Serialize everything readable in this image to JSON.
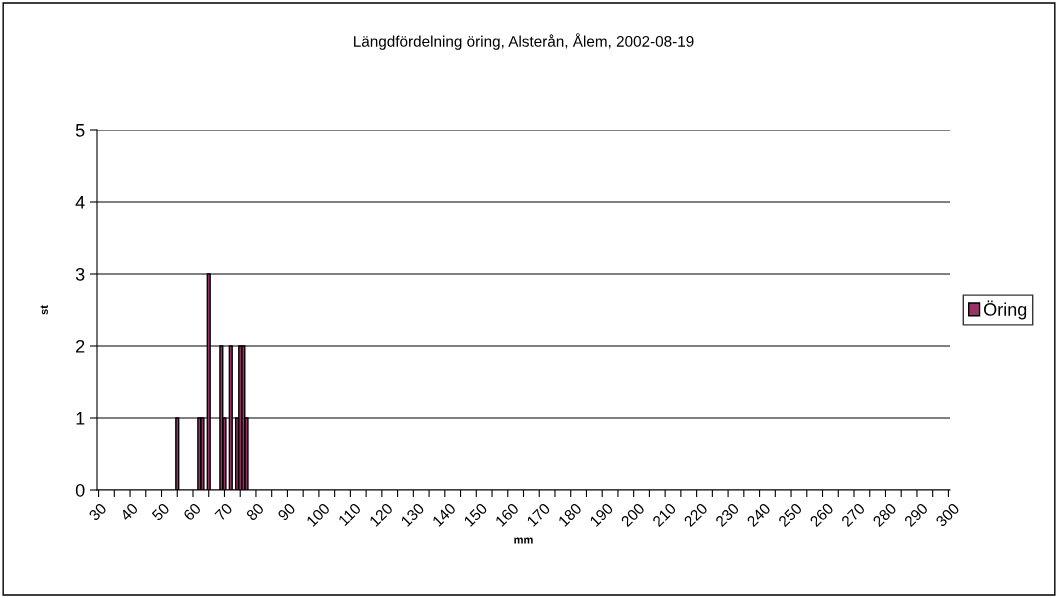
{
  "chart_data": {
    "type": "bar",
    "title": "Längdfördelning öring, Alsterån, Ålem, 2002-08-19",
    "xlabel": "mm",
    "ylabel": "st",
    "x": [
      55,
      62,
      63,
      65,
      69,
      70,
      72,
      74,
      75,
      76,
      77
    ],
    "series": [
      {
        "name": "Öring",
        "color": "#993366",
        "values": [
          1,
          1,
          1,
          3,
          2,
          1,
          2,
          1,
          2,
          2,
          1
        ]
      }
    ],
    "xlim": [
      29.5,
      300.5
    ],
    "xticks": [
      30,
      {
        "value": 35,
        "label": null
      },
      40,
      {
        "value": 45,
        "label": null
      },
      50,
      {
        "value": 55,
        "label": null
      },
      60,
      {
        "value": 65,
        "label": null
      },
      70,
      {
        "value": 75,
        "label": null
      },
      80,
      {
        "value": 85,
        "label": null
      },
      90,
      {
        "value": 95,
        "label": null
      },
      100,
      {
        "value": 105,
        "label": null
      },
      110,
      {
        "value": 115,
        "label": null
      },
      120,
      {
        "value": 125,
        "label": null
      },
      130,
      {
        "value": 135,
        "label": null
      },
      140,
      {
        "value": 145,
        "label": null
      },
      150,
      {
        "value": 155,
        "label": null
      },
      160,
      {
        "value": 165,
        "label": null
      },
      170,
      {
        "value": 175,
        "label": null
      },
      180,
      {
        "value": 185,
        "label": null
      },
      190,
      {
        "value": 195,
        "label": null
      },
      200,
      {
        "value": 205,
        "label": null
      },
      210,
      {
        "value": 215,
        "label": null
      },
      220,
      {
        "value": 225,
        "label": null
      },
      230,
      {
        "value": 235,
        "label": null
      },
      240,
      {
        "value": 245,
        "label": null
      },
      250,
      {
        "value": 255,
        "label": null
      },
      260,
      {
        "value": 265,
        "label": null
      },
      270,
      {
        "value": 275,
        "label": null
      },
      280,
      {
        "value": 285,
        "label": null
      },
      290,
      {
        "value": 295,
        "label": null
      },
      300
    ],
    "ylim": [
      0,
      5
    ],
    "yticks": [
      0,
      1,
      2,
      3,
      4,
      5
    ],
    "grid": "y",
    "legend": "right"
  }
}
